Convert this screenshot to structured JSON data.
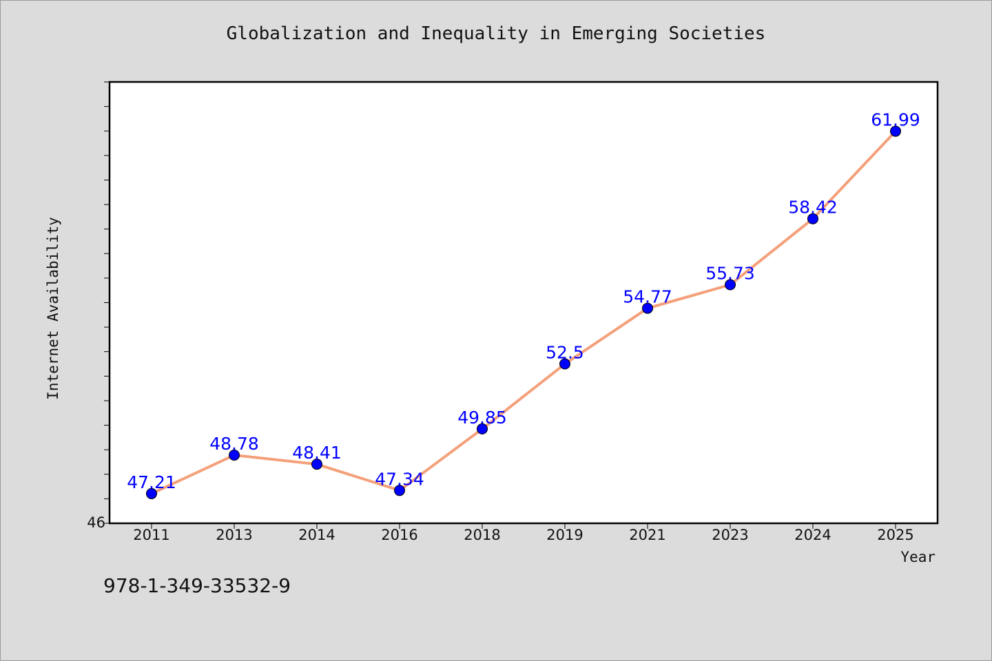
{
  "chart_data": {
    "type": "line",
    "title": "Globalization and Inequality in Emerging Societies",
    "xlabel": "Year",
    "ylabel": "Internet Availability",
    "categories": [
      "2011",
      "2013",
      "2014",
      "2016",
      "2018",
      "2019",
      "2021",
      "2023",
      "2024",
      "2025"
    ],
    "values": [
      47.21,
      48.78,
      48.41,
      47.34,
      49.85,
      52.5,
      54.77,
      55.73,
      58.42,
      61.99
    ],
    "data_labels": [
      "47.21",
      "48.78",
      "48.41",
      "47.34",
      "49.85",
      "52.5",
      "54.77",
      "55.73",
      "58.42",
      "61.99"
    ],
    "ylim": [
      46,
      64
    ],
    "y_tick_labels": [
      "46"
    ],
    "grid": false,
    "line_color": "#f4a07a",
    "marker_color": "#0000ff",
    "label_color": "#0000ff",
    "background": "#dcdcdc",
    "plot_background": "#ffffff"
  },
  "footer": {
    "isbn": "978-1-349-33532-9"
  }
}
